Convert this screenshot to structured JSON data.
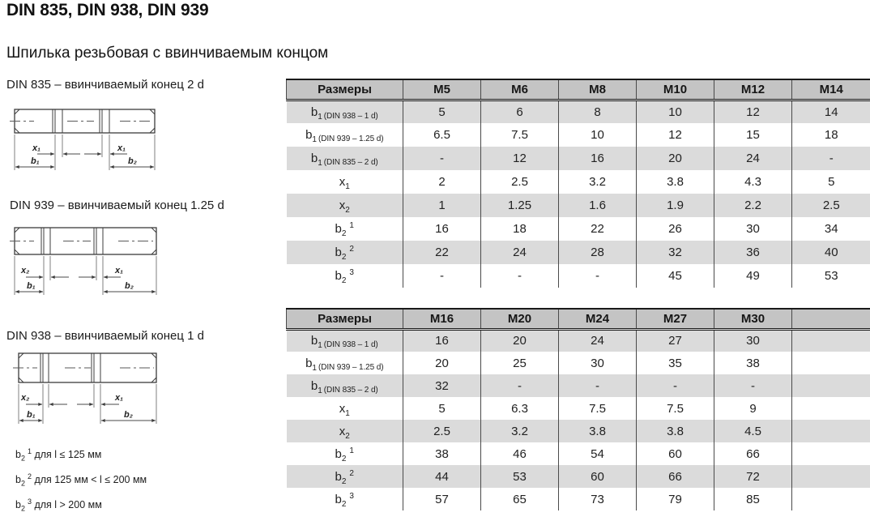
{
  "page": {
    "title": "DIN 835, DIN 938, DIN 939",
    "subtitle": "Шпилька резьбовая с ввинчиваемым концом"
  },
  "colors": {
    "header_bg": "#c4c4c4",
    "stripe_bg": "#dbdbdb",
    "border_dark": "#1a1a1a",
    "grid_line": "#4a4a4a",
    "draw_line": "#3c3c3c"
  },
  "drawings": [
    {
      "caption": "DIN 835 – ввинчиваемый конец 2 d",
      "x_left": "x₁",
      "x_right": "x₁",
      "b_left": "b₁",
      "b_right": "b₂"
    },
    {
      "caption": "DIN 939 – ввинчиваемый конец 1.25 d",
      "x_left": "x₂",
      "x_right": "x₁",
      "b_left": "b₁",
      "b_right": "b₂"
    },
    {
      "caption": "DIN 938 – ввинчиваемый конец 1 d",
      "x_left": "x₂",
      "x_right": "x₁",
      "b_left": "b₁",
      "b_right": "b₂"
    }
  ],
  "footnotes": [
    {
      "base": "b",
      "sub": "2",
      "sup": "1",
      "text": "для l ≤ 125 мм"
    },
    {
      "base": "b",
      "sub": "2",
      "sup": "2",
      "text": "для 125 мм < l ≤ 200 мм"
    },
    {
      "base": "b",
      "sub": "2",
      "sup": "3",
      "text": "для l > 200 мм"
    }
  ],
  "tables": [
    {
      "title_cell": "Размеры",
      "header": [
        "Размеры",
        "M5",
        "M6",
        "M8",
        "M10",
        "M12",
        "M14"
      ],
      "rows": [
        {
          "label": {
            "base": "b",
            "sub": "1",
            "note": "(DIN 938 – 1 d)"
          },
          "values": [
            "5",
            "6",
            "8",
            "10",
            "12",
            "14"
          ]
        },
        {
          "label": {
            "base": "b",
            "sub": "1",
            "note": "(DIN 939 – 1.25 d)"
          },
          "values": [
            "6.5",
            "7.5",
            "10",
            "12",
            "15",
            "18"
          ]
        },
        {
          "label": {
            "base": "b",
            "sub": "1",
            "note": "(DIN 835 – 2 d)"
          },
          "values": [
            "-",
            "12",
            "16",
            "20",
            "24",
            "-"
          ]
        },
        {
          "label": {
            "base": "x",
            "sub": "1"
          },
          "values": [
            "2",
            "2.5",
            "3.2",
            "3.8",
            "4.3",
            "5"
          ]
        },
        {
          "label": {
            "base": "x",
            "sub": "2"
          },
          "values": [
            "1",
            "1.25",
            "1.6",
            "1.9",
            "2.2",
            "2.5"
          ]
        },
        {
          "label": {
            "base": "b",
            "sub": "2",
            "sup": "1"
          },
          "values": [
            "16",
            "18",
            "22",
            "26",
            "30",
            "34"
          ]
        },
        {
          "label": {
            "base": "b",
            "sub": "2",
            "sup": "2"
          },
          "values": [
            "22",
            "24",
            "28",
            "32",
            "36",
            "40"
          ]
        },
        {
          "label": {
            "base": "b",
            "sub": "2",
            "sup": "3"
          },
          "values": [
            "-",
            "-",
            "-",
            "45",
            "49",
            "53"
          ]
        }
      ]
    },
    {
      "title_cell": "Размеры",
      "header": [
        "Размеры",
        "M16",
        "M20",
        "M24",
        "M27",
        "M30",
        ""
      ],
      "rows": [
        {
          "label": {
            "base": "b",
            "sub": "1",
            "note": "(DIN 938 – 1 d)"
          },
          "values": [
            "16",
            "20",
            "24",
            "27",
            "30",
            ""
          ]
        },
        {
          "label": {
            "base": "b",
            "sub": "1",
            "note": "(DIN 939 – 1.25 d)"
          },
          "values": [
            "20",
            "25",
            "30",
            "35",
            "38",
            ""
          ]
        },
        {
          "label": {
            "base": "b",
            "sub": "1",
            "note": "(DIN 835 – 2 d)"
          },
          "values": [
            "32",
            "-",
            "-",
            "-",
            "-",
            ""
          ]
        },
        {
          "label": {
            "base": "x",
            "sub": "1"
          },
          "values": [
            "5",
            "6.3",
            "7.5",
            "7.5",
            "9",
            ""
          ]
        },
        {
          "label": {
            "base": "x",
            "sub": "2"
          },
          "values": [
            "2.5",
            "3.2",
            "3.8",
            "3.8",
            "4.5",
            ""
          ]
        },
        {
          "label": {
            "base": "b",
            "sub": "2",
            "sup": "1"
          },
          "values": [
            "38",
            "46",
            "54",
            "60",
            "66",
            ""
          ]
        },
        {
          "label": {
            "base": "b",
            "sub": "2",
            "sup": "2"
          },
          "values": [
            "44",
            "53",
            "60",
            "66",
            "72",
            ""
          ]
        },
        {
          "label": {
            "base": "b",
            "sub": "2",
            "sup": "3"
          },
          "values": [
            "57",
            "65",
            "73",
            "79",
            "85",
            ""
          ]
        }
      ]
    }
  ]
}
